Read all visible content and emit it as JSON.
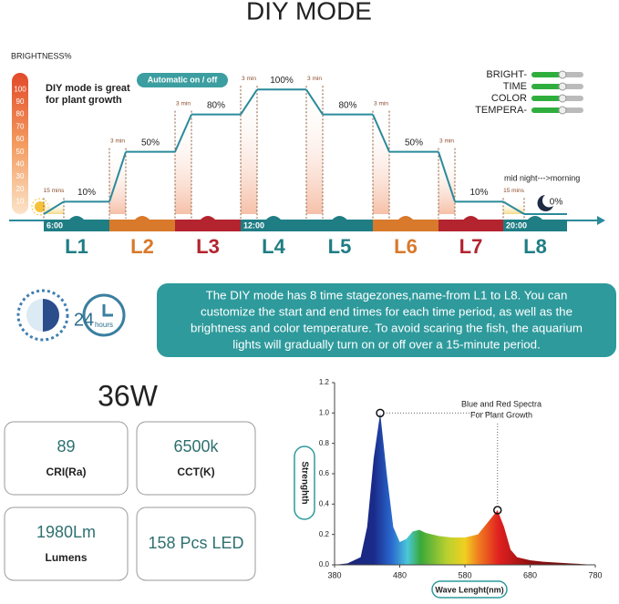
{
  "title": "DIY MODE",
  "schedule": {
    "y_label": "BRIGHTNESS%",
    "yticks": [
      10,
      20,
      30,
      40,
      50,
      60,
      70,
      80,
      90,
      100
    ],
    "note_lines": [
      "DIY mode is great",
      "for plant growth"
    ],
    "badge": "Automatic on / off",
    "legend": [
      "BRIGHT-",
      "TIME",
      "COLOR",
      "TEMPERA-"
    ],
    "ramps": [
      "15 mins",
      "3 min",
      "3 min",
      "3 min",
      "3 min",
      "3 min",
      "3 min",
      "15 mins"
    ],
    "stages": [
      {
        "name": "L1",
        "brightness": 10,
        "value_label": "10%",
        "color": "#1f7d84",
        "time": "6:00"
      },
      {
        "name": "L2",
        "brightness": 50,
        "value_label": "50%",
        "color": "#d8792b"
      },
      {
        "name": "L3",
        "brightness": 80,
        "value_label": "80%",
        "color": "#b3242f"
      },
      {
        "name": "L4",
        "brightness": 100,
        "value_label": "100%",
        "color": "#1f7d84",
        "time": "12:00"
      },
      {
        "name": "L5",
        "brightness": 80,
        "value_label": "80%",
        "color": "#1f7d84"
      },
      {
        "name": "L6",
        "brightness": 50,
        "value_label": "50%",
        "color": "#d8792b"
      },
      {
        "name": "L7",
        "brightness": 10,
        "value_label": "10%",
        "color": "#b3242f"
      },
      {
        "name": "L8",
        "brightness": 0,
        "value_label": "0%",
        "color": "#1f7d84",
        "time": "20:00"
      }
    ],
    "night_label": "mid night--->morning"
  },
  "description": {
    "icon_number": "24",
    "icon_unit": "hours",
    "lines": [
      "The DIY mode has 8 time stagezones,name-from L1 to L8. You can",
      "customize the start and end times for each time period, as well as the",
      "brightness and color temperature. To avoid scaring the fish, the aquarium",
      "lights will gradually turn on or off over a 15-minute period."
    ]
  },
  "specs": {
    "power": "36W",
    "cards": [
      {
        "value": "89",
        "label": "CRI(Ra)"
      },
      {
        "value": "6500k",
        "label": "CCT(K)"
      },
      {
        "value": "1980Lm",
        "label": "Lumens"
      },
      {
        "value": "158 Pcs LED"
      }
    ]
  },
  "spectrum": {
    "type": "area",
    "x_label": "Wave Lenght(nm)",
    "y_label": "Strenghth",
    "annotation": [
      "Blue and Red Spectra",
      "For Plant Growth"
    ],
    "xlim": [
      380,
      780
    ],
    "xticks": [
      380,
      480,
      580,
      680,
      780
    ],
    "ylim": [
      0,
      1.2
    ],
    "yticks": [
      {
        "value": 0,
        "label": "0.0"
      },
      0.2,
      0.4,
      0.6,
      0.8,
      {
        "value": 1,
        "label": "1.0"
      },
      1.2
    ],
    "x": [
      380,
      400,
      420,
      430,
      440,
      450,
      460,
      470,
      480,
      490,
      500,
      510,
      520,
      540,
      560,
      580,
      600,
      615,
      630,
      640,
      650,
      660,
      680,
      700,
      740,
      780
    ],
    "values": [
      0,
      0.01,
      0.05,
      0.25,
      0.7,
      1.0,
      0.6,
      0.25,
      0.15,
      0.17,
      0.22,
      0.23,
      0.21,
      0.19,
      0.18,
      0.18,
      0.2,
      0.28,
      0.36,
      0.25,
      0.1,
      0.05,
      0.03,
      0.02,
      0.01,
      0
    ],
    "peaks": [
      {
        "x": 450,
        "y": 1.0
      },
      {
        "x": 630,
        "y": 0.36
      }
    ]
  }
}
